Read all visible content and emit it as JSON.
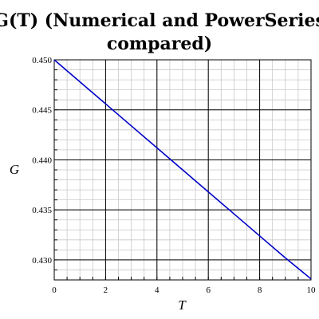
{
  "chart_data": {
    "type": "line",
    "title_lines": [
      "G(T) (Numerical and PowerSeries",
      "compared)"
    ],
    "xlabel": "T",
    "ylabel": "G",
    "xlim": [
      0,
      10
    ],
    "ylim": [
      0.428,
      0.45
    ],
    "x_ticks": [
      0,
      2,
      4,
      6,
      8,
      10
    ],
    "x_tick_labels": [
      "0",
      "2",
      "4",
      "6",
      "8",
      "10"
    ],
    "y_ticks": [
      0.43,
      0.435,
      0.44,
      0.445,
      0.45
    ],
    "y_tick_labels": [
      "0.430",
      "0.435",
      "0.440",
      "0.445",
      "0.450"
    ],
    "grid": true,
    "series": [
      {
        "color": "#0000c8",
        "x": [
          0,
          1,
          2,
          3,
          4,
          5,
          6,
          7,
          8,
          9,
          10
        ],
        "y": [
          0.45,
          0.4478,
          0.4456,
          0.4434,
          0.4412,
          0.439,
          0.4368,
          0.4346,
          0.4324,
          0.4302,
          0.4281
        ]
      }
    ]
  }
}
